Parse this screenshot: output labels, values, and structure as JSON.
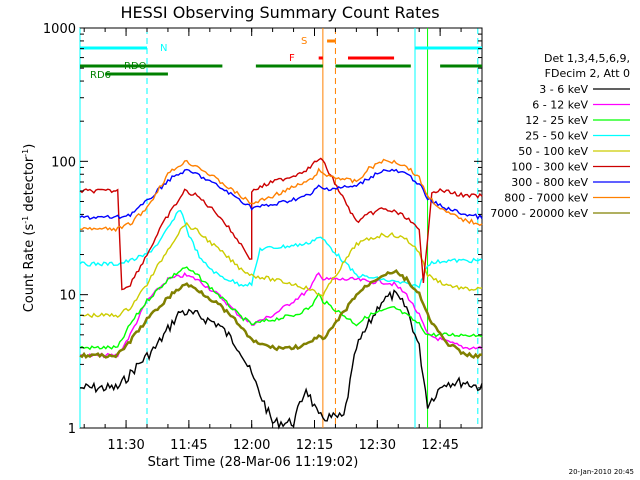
{
  "chart_data": {
    "type": "line",
    "title": "HESSI Observing Summary Count Rates",
    "xlabel": "Start Time (28-Mar-06 11:19:02)",
    "ylabel_main": "Count Rate (s",
    "ylabel_sup1": "-1",
    "ylabel_mid": " detector",
    "ylabel_sup2": "-1",
    "ylabel_end": ")",
    "y_scale": "log",
    "ylim": [
      1,
      1000
    ],
    "xlim": [
      "11:19",
      "12:55"
    ],
    "x_ticks": [
      "11:30",
      "11:45",
      "12:00",
      "12:15",
      "12:30",
      "12:45"
    ],
    "y_ticks": [
      "1",
      "10",
      "100",
      "1000"
    ],
    "legend_header": [
      "Det 1,3,4,5,6,9,",
      "FDecim 2, Att 0"
    ],
    "legend_placement": "right",
    "timestamp": "20-Jan-2010 20:45",
    "flag_labels": {
      "N": "N",
      "S": "S",
      "F": "F",
      "RDO": "RDO",
      "RD6": "RD6"
    },
    "series": [
      {
        "name": "3 - 6 keV",
        "color": "#000000",
        "x": [
          "11:19",
          "11:28",
          "11:33",
          "11:37",
          "11:40",
          "11:43",
          "11:47",
          "11:52",
          "11:57",
          "12:00",
          "12:05",
          "12:10",
          "12:13",
          "12:16",
          "12:18",
          "12:22",
          "12:25",
          "12:28",
          "12:31",
          "12:34",
          "12:37",
          "12:40",
          "12:42",
          "12:46",
          "12:51",
          "12:55"
        ],
        "y": [
          2.0,
          2.0,
          3,
          4,
          5.5,
          7.5,
          7,
          6,
          4,
          2.5,
          1.1,
          1.1,
          2,
          1.2,
          1.2,
          1.2,
          4,
          6,
          9,
          10,
          8,
          4,
          1.5,
          2.2,
          2.2,
          2.0
        ]
      },
      {
        "name": "6 - 12 keV",
        "color": "#ff00ff",
        "x": [
          "11:19",
          "11:28",
          "11:31",
          "11:35",
          "11:40",
          "11:44",
          "11:47",
          "11:52",
          "11:57",
          "12:00",
          "12:05",
          "12:10",
          "12:14",
          "12:16",
          "12:17",
          "12:25",
          "12:28",
          "12:31",
          "12:34",
          "12:37",
          "12:40",
          "12:42",
          "12:46",
          "12:51",
          "12:55"
        ],
        "y": [
          3.5,
          3.5,
          5,
          9,
          13,
          14,
          13,
          10,
          7,
          6,
          7,
          9,
          11,
          15,
          13,
          13,
          12.5,
          12.5,
          12,
          10,
          7,
          5,
          4.5,
          4,
          4
        ]
      },
      {
        "name": "12 - 25 keV",
        "color": "#00ff00",
        "x": [
          "11:19",
          "11:28",
          "11:31",
          "11:35",
          "11:40",
          "11:44",
          "11:47",
          "11:52",
          "11:57",
          "12:00",
          "12:05",
          "12:10",
          "12:14",
          "12:16",
          "12:17",
          "12:25",
          "12:28",
          "12:31",
          "12:34",
          "12:37",
          "12:40",
          "12:42",
          "12:46",
          "12:51",
          "12:55"
        ],
        "y": [
          4,
          4,
          6,
          9,
          13,
          16,
          14,
          10,
          7,
          6,
          6.5,
          7,
          8,
          10,
          9,
          6,
          7,
          7.5,
          8,
          7,
          6,
          5,
          5,
          5,
          5
        ]
      },
      {
        "name": "25 - 50 keV",
        "color": "#00ffff",
        "x": [
          "11:19",
          "11:28",
          "11:31",
          "11:35",
          "11:38",
          "11:41",
          "11:43",
          "11:45",
          "11:48",
          "11:52",
          "11:57",
          "12:00",
          "12:02",
          "12:08",
          "12:13",
          "12:16",
          "12:17",
          "12:25",
          "12:28",
          "12:31",
          "12:34",
          "12:37",
          "12:40",
          "12:42",
          "12:46",
          "12:51",
          "12:55"
        ],
        "y": [
          17,
          17,
          18,
          20,
          25,
          35,
          44,
          28,
          18,
          14,
          12,
          12,
          22,
          23,
          24,
          27,
          26,
          14,
          13.5,
          13,
          12.5,
          12,
          11.5,
          17,
          18,
          18,
          18
        ]
      },
      {
        "name": "50 - 100 keV",
        "color": "#cccc00",
        "x": [
          "11:19",
          "11:28",
          "11:31",
          "11:35",
          "11:40",
          "11:44",
          "11:47",
          "11:52",
          "11:57",
          "12:00",
          "12:05",
          "12:10",
          "12:14",
          "12:16",
          "12:17",
          "12:25",
          "12:28",
          "12:31",
          "12:34",
          "12:37",
          "12:40",
          "12:42",
          "12:46",
          "12:51",
          "12:55"
        ],
        "y": [
          7,
          7,
          8,
          12,
          22,
          34,
          30,
          22,
          16,
          14,
          13,
          12,
          11,
          10,
          10,
          24,
          26,
          28,
          28,
          26,
          21,
          14,
          12,
          11,
          11
        ]
      },
      {
        "name": "100 - 300 keV",
        "color": "#cc0000",
        "x": [
          "11:19",
          "11:28",
          "11:29",
          "11:31",
          "11:35",
          "11:39",
          "11:44",
          "11:47",
          "11:52",
          "11:57",
          "12:00",
          "12:00",
          "12:05",
          "12:10",
          "12:14",
          "12:16",
          "12:17",
          "12:25",
          "12:28",
          "12:31",
          "12:34",
          "12:37",
          "12:40",
          "12:41",
          "12:43",
          "12:46",
          "12:51",
          "12:55"
        ],
        "y": [
          60,
          60,
          11,
          12,
          20,
          35,
          60,
          55,
          40,
          25,
          18,
          60,
          70,
          78,
          90,
          105,
          100,
          35,
          40,
          44,
          42,
          38,
          30,
          12,
          60,
          60,
          55,
          55
        ]
      },
      {
        "name": "300 - 800 keV",
        "color": "#0000ff",
        "x": [
          "11:19",
          "11:28",
          "11:31",
          "11:35",
          "11:40",
          "11:44",
          "11:47",
          "11:52",
          "11:57",
          "12:00",
          "12:05",
          "12:10",
          "12:14",
          "12:16",
          "12:17",
          "12:25",
          "12:28",
          "12:31",
          "12:34",
          "12:37",
          "12:40",
          "12:42",
          "12:46",
          "12:51",
          "12:55"
        ],
        "y": [
          38,
          38,
          40,
          50,
          72,
          85,
          80,
          65,
          52,
          45,
          47,
          52,
          56,
          65,
          62,
          65,
          75,
          85,
          85,
          80,
          68,
          52,
          45,
          40,
          38
        ]
      },
      {
        "name": "800 - 7000 keV",
        "color": "#ff8000",
        "x": [
          "11:19",
          "11:28",
          "11:31",
          "11:35",
          "11:40",
          "11:44",
          "11:47",
          "11:52",
          "11:57",
          "12:00",
          "12:05",
          "12:10",
          "12:14",
          "12:16",
          "12:17",
          "12:25",
          "12:28",
          "12:31",
          "12:34",
          "12:37",
          "12:40",
          "12:42",
          "12:46",
          "12:51",
          "12:55"
        ],
        "y": [
          31,
          31,
          34,
          45,
          80,
          100,
          92,
          72,
          56,
          48,
          55,
          64,
          72,
          85,
          80,
          70,
          88,
          100,
          100,
          92,
          75,
          55,
          42,
          36,
          34
        ]
      },
      {
        "name": "7000 - 20000 keV",
        "color": "#808000",
        "x": [
          "11:19",
          "11:28",
          "11:31",
          "11:35",
          "11:40",
          "11:44",
          "11:47",
          "11:52",
          "11:57",
          "12:00",
          "12:05",
          "12:10",
          "12:14",
          "12:16",
          "12:17",
          "12:25",
          "12:28",
          "12:31",
          "12:34",
          "12:37",
          "12:40",
          "12:42",
          "12:46",
          "12:51",
          "12:55"
        ],
        "y": [
          3.5,
          3.5,
          4.5,
          6.5,
          9.5,
          12,
          11,
          8.5,
          6,
          4.5,
          4,
          4,
          4.3,
          5,
          4.5,
          10,
          12,
          14,
          15,
          13,
          10,
          7,
          4.5,
          3.5,
          3.5
        ]
      }
    ],
    "flag_bars": [
      {
        "label": "N",
        "color": "#00ffff",
        "segments": [
          [
            "11:19",
            "11:35"
          ],
          [
            "12:39",
            "12:55"
          ]
        ]
      },
      {
        "label": "RDO",
        "color": "#008000",
        "segments": [
          [
            "11:19",
            "11:53"
          ],
          [
            "12:01",
            "12:17"
          ],
          [
            "12:20",
            "12:38"
          ],
          [
            "12:45",
            "12:55"
          ]
        ]
      },
      {
        "label": "RD6",
        "color": "#008000",
        "segments": [
          [
            "11:25",
            "11:40"
          ]
        ]
      },
      {
        "label": "S",
        "color": "#ff8000",
        "segments": [
          [
            "12:18",
            "12:20"
          ]
        ]
      },
      {
        "label": "F",
        "color": "#ff0000",
        "segments": [
          [
            "12:16",
            "12:17"
          ],
          [
            "12:23",
            "12:34"
          ]
        ]
      }
    ],
    "vertical_markers": [
      {
        "x": "11:19",
        "color": "#00ffff",
        "style": "solid"
      },
      {
        "x": "11:35",
        "color": "#00ffff",
        "style": "dashed"
      },
      {
        "x": "12:39",
        "color": "#00ffff",
        "style": "solid"
      },
      {
        "x": "12:54",
        "color": "#00ffff",
        "style": "dashed"
      },
      {
        "x": "12:17",
        "color": "#ff8000",
        "style": "solid"
      },
      {
        "x": "12:20",
        "color": "#ff8000",
        "style": "dashed"
      },
      {
        "x": "12:42",
        "color": "#00ff00",
        "style": "solid"
      }
    ]
  }
}
